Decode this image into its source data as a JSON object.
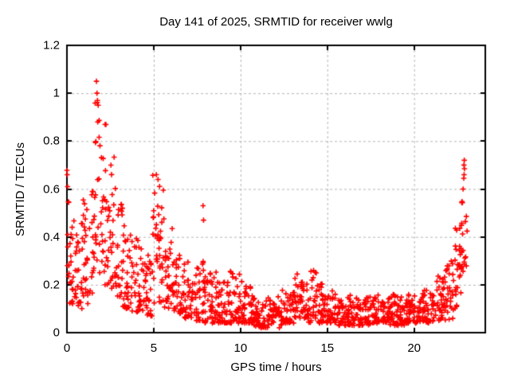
{
  "window": {
    "title": "Day 141 of 2025, SRMTID for receiver wwlg",
    "background_color": "#ffffff"
  },
  "chart_data": {
    "type": "scatter",
    "title": "Day 141 of 2025, SRMTID for receiver wwlg",
    "xlabel": "GPS time / hours",
    "ylabel": "SRMTID / TECUs",
    "xlim": [
      0,
      24.1
    ],
    "ylim": [
      0,
      1.2
    ],
    "xticks": {
      "values": [
        0,
        5,
        10,
        15,
        20
      ],
      "labels": [
        "0",
        "5",
        "10",
        "15",
        "20"
      ]
    },
    "yticks": {
      "values": [
        0,
        0.2,
        0.4,
        0.6,
        0.8,
        1.0,
        1.2
      ],
      "labels": [
        "0",
        "0.2",
        "0.4",
        "0.6",
        "0.8",
        "1",
        "1.2"
      ]
    },
    "grid": true,
    "grid_style": "dashed",
    "legend": "none",
    "series_name": "SRMTID",
    "marker": {
      "shape": "plus",
      "size": 7,
      "color": "#ff0000"
    },
    "colors": {
      "marker": "#ff0000",
      "grid": "#b3b3b3",
      "axis": "#000000",
      "text": "#000000"
    },
    "points_per_hour": 60,
    "seed": 141,
    "data_x_range": [
      0,
      23.05
    ],
    "envelope": [
      {
        "h0": 0.0,
        "h1": 0.15,
        "lo": 0.2,
        "hi": 0.68,
        "bias": 1.3
      },
      {
        "h0": 0.15,
        "h1": 0.5,
        "lo": 0.12,
        "hi": 0.52,
        "bias": 1.4
      },
      {
        "h0": 0.5,
        "h1": 0.9,
        "lo": 0.1,
        "hi": 0.48,
        "bias": 1.4
      },
      {
        "h0": 0.9,
        "h1": 1.3,
        "lo": 0.12,
        "hi": 0.56,
        "bias": 1.4
      },
      {
        "h0": 1.3,
        "h1": 1.6,
        "lo": 0.15,
        "hi": 0.62,
        "bias": 1.4
      },
      {
        "h0": 1.6,
        "h1": 1.85,
        "lo": 0.3,
        "hi": 1.06,
        "bias": 1.2
      },
      {
        "h0": 1.85,
        "h1": 2.15,
        "lo": 0.25,
        "hi": 0.92,
        "bias": 1.3
      },
      {
        "h0": 2.15,
        "h1": 2.45,
        "lo": 0.2,
        "hi": 0.87,
        "bias": 1.4
      },
      {
        "h0": 2.45,
        "h1": 2.8,
        "lo": 0.18,
        "hi": 0.76,
        "bias": 1.5
      },
      {
        "h0": 2.8,
        "h1": 3.2,
        "lo": 0.15,
        "hi": 0.55,
        "bias": 1.5
      },
      {
        "h0": 3.2,
        "h1": 3.7,
        "lo": 0.1,
        "hi": 0.46,
        "bias": 1.5
      },
      {
        "h0": 3.7,
        "h1": 4.3,
        "lo": 0.08,
        "hi": 0.4,
        "bias": 1.6
      },
      {
        "h0": 4.3,
        "h1": 4.9,
        "lo": 0.07,
        "hi": 0.35,
        "bias": 1.6
      },
      {
        "h0": 4.9,
        "h1": 5.6,
        "lo": 0.12,
        "hi": 0.66,
        "bias": 1.3
      },
      {
        "h0": 5.6,
        "h1": 6.1,
        "lo": 0.1,
        "hi": 0.45,
        "bias": 1.5
      },
      {
        "h0": 6.1,
        "h1": 6.7,
        "lo": 0.08,
        "hi": 0.35,
        "bias": 1.6
      },
      {
        "h0": 6.7,
        "h1": 7.3,
        "lo": 0.06,
        "hi": 0.3,
        "bias": 1.6
      },
      {
        "h0": 7.3,
        "h1": 7.9,
        "lo": 0.05,
        "hi": 0.3,
        "bias": 1.6
      },
      {
        "h0": 7.9,
        "h1": 8.6,
        "lo": 0.04,
        "hi": 0.26,
        "bias": 1.7
      },
      {
        "h0": 8.6,
        "h1": 9.4,
        "lo": 0.04,
        "hi": 0.22,
        "bias": 1.7
      },
      {
        "h0": 9.4,
        "h1": 10.1,
        "lo": 0.04,
        "hi": 0.28,
        "bias": 1.6
      },
      {
        "h0": 10.1,
        "h1": 10.7,
        "lo": 0.04,
        "hi": 0.22,
        "bias": 1.7
      },
      {
        "h0": 10.7,
        "h1": 11.6,
        "lo": 0.02,
        "hi": 0.15,
        "bias": 1.6
      },
      {
        "h0": 11.6,
        "h1": 12.4,
        "lo": 0.02,
        "hi": 0.15,
        "bias": 1.6
      },
      {
        "h0": 12.4,
        "h1": 13.1,
        "lo": 0.04,
        "hi": 0.18,
        "bias": 1.6
      },
      {
        "h0": 13.1,
        "h1": 13.9,
        "lo": 0.06,
        "hi": 0.25,
        "bias": 1.4
      },
      {
        "h0": 13.9,
        "h1": 14.7,
        "lo": 0.04,
        "hi": 0.26,
        "bias": 1.7
      },
      {
        "h0": 14.7,
        "h1": 15.5,
        "lo": 0.04,
        "hi": 0.18,
        "bias": 1.7
      },
      {
        "h0": 15.5,
        "h1": 16.5,
        "lo": 0.03,
        "hi": 0.16,
        "bias": 1.7
      },
      {
        "h0": 16.5,
        "h1": 17.5,
        "lo": 0.03,
        "hi": 0.15,
        "bias": 1.7
      },
      {
        "h0": 17.5,
        "h1": 18.5,
        "lo": 0.04,
        "hi": 0.16,
        "bias": 1.7
      },
      {
        "h0": 18.5,
        "h1": 19.5,
        "lo": 0.03,
        "hi": 0.16,
        "bias": 1.7
      },
      {
        "h0": 19.5,
        "h1": 20.5,
        "lo": 0.04,
        "hi": 0.16,
        "bias": 1.7
      },
      {
        "h0": 20.5,
        "h1": 21.2,
        "lo": 0.04,
        "hi": 0.18,
        "bias": 1.6
      },
      {
        "h0": 21.2,
        "h1": 21.7,
        "lo": 0.05,
        "hi": 0.24,
        "bias": 1.5
      },
      {
        "h0": 21.7,
        "h1": 22.3,
        "lo": 0.05,
        "hi": 0.3,
        "bias": 1.5
      },
      {
        "h0": 22.3,
        "h1": 22.7,
        "lo": 0.1,
        "hi": 0.5,
        "bias": 1.3
      },
      {
        "h0": 22.7,
        "h1": 23.05,
        "lo": 0.25,
        "hi": 0.56,
        "bias": 1.1
      }
    ],
    "outlier_points": [
      [
        0.02,
        0.66
      ],
      [
        0.04,
        0.61
      ],
      [
        1.7,
        1.05
      ],
      [
        1.73,
        1.0
      ],
      [
        1.76,
        0.97
      ],
      [
        1.8,
        0.95
      ],
      [
        2.2,
        0.87
      ],
      [
        5.15,
        0.66
      ],
      [
        5.25,
        0.64
      ],
      [
        7.84,
        0.53
      ],
      [
        7.87,
        0.47
      ],
      [
        22.82,
        0.6
      ],
      [
        22.86,
        0.645
      ],
      [
        22.88,
        0.66
      ],
      [
        22.9,
        0.685
      ],
      [
        22.87,
        0.7
      ],
      [
        22.89,
        0.72
      ]
    ]
  }
}
